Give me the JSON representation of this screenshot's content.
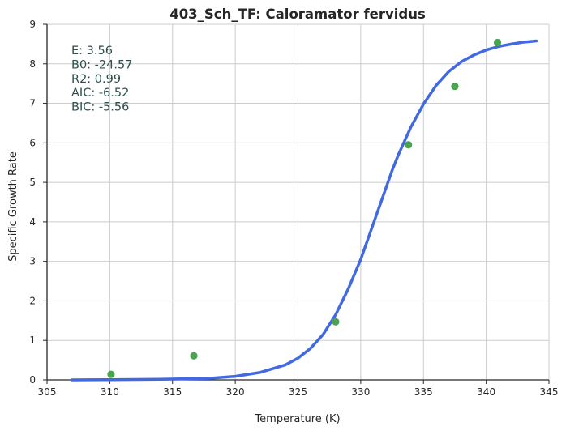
{
  "chart_data": {
    "type": "scatter",
    "title": "403_Sch_TF: Caloramator fervidus",
    "xlabel": "Temperature (K)",
    "ylabel": "Specific Growth Rate",
    "xlim": [
      305,
      345
    ],
    "ylim": [
      0,
      9
    ],
    "xticks": [
      305,
      310,
      315,
      320,
      325,
      330,
      335,
      340,
      345
    ],
    "yticks": [
      0,
      1,
      2,
      3,
      4,
      5,
      6,
      7,
      8,
      9
    ],
    "grid": true,
    "series": [
      {
        "kind": "scatter",
        "color": "#4aa350",
        "x": [
          310.1,
          316.7,
          328.0,
          333.8,
          337.5,
          340.9
        ],
        "y": [
          0.14,
          0.61,
          1.47,
          5.95,
          7.43,
          8.54
        ]
      },
      {
        "kind": "line",
        "color": "#4169e1",
        "x": [
          307.0,
          310.0,
          314.0,
          318.0,
          320.0,
          322.0,
          324.0,
          325.0,
          326.0,
          327.0,
          328.0,
          329.0,
          330.0,
          330.5,
          331.0,
          331.5,
          332.0,
          332.5,
          333.0,
          334.0,
          335.0,
          336.0,
          337.0,
          338.0,
          339.0,
          340.0,
          341.0,
          342.0,
          343.0,
          344.0
        ],
        "y": [
          0.0,
          0.005,
          0.015,
          0.04,
          0.09,
          0.19,
          0.38,
          0.55,
          0.8,
          1.15,
          1.65,
          2.3,
          3.05,
          3.5,
          3.95,
          4.4,
          4.85,
          5.3,
          5.7,
          6.4,
          6.98,
          7.45,
          7.8,
          8.05,
          8.22,
          8.35,
          8.44,
          8.5,
          8.55,
          8.58
        ]
      }
    ],
    "annotations": [
      "E:  3.56",
      "B0:  -24.57",
      "R2:  0.99",
      "AIC: -6.52",
      "BIC: -5.56"
    ]
  }
}
